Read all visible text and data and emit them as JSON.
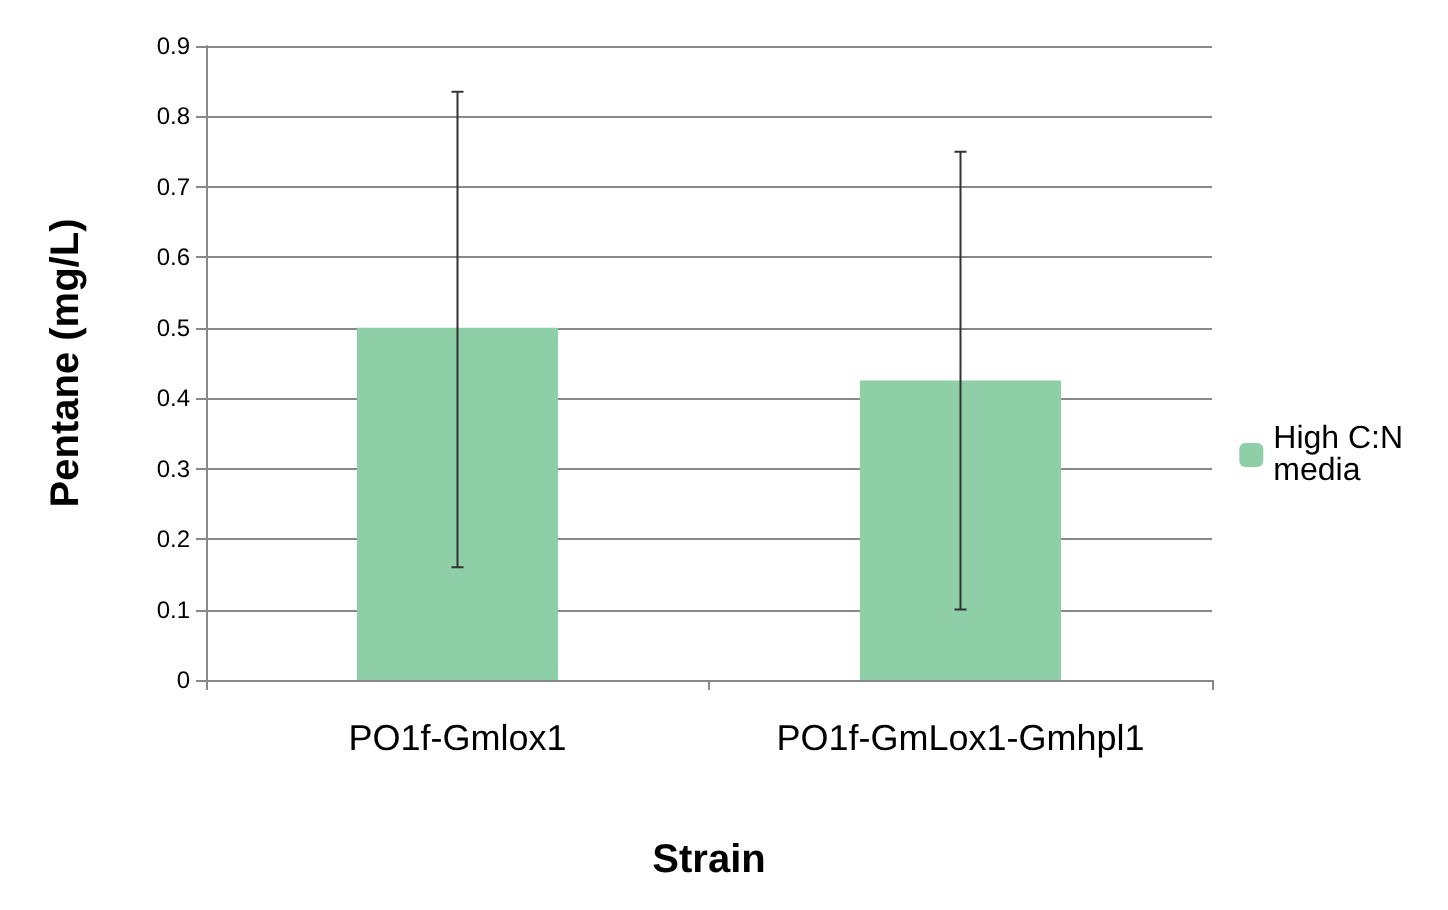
{
  "chart_data": {
    "type": "bar",
    "xlabel": "Strain",
    "ylabel": "Pentane (mg/L)",
    "categories": [
      "PO1f-Gmlox1",
      "PO1f-GmLox1-Gmhpl1"
    ],
    "series": [
      {
        "name": "High C:N media",
        "color": "#8ecfa8",
        "values": [
          0.5,
          0.425
        ],
        "errors": [
          [
            0.16,
            0.835
          ],
          [
            0.1,
            0.75
          ]
        ]
      }
    ],
    "ylim": [
      0,
      0.9
    ],
    "yticks": [
      0,
      0.1,
      0.2,
      0.3,
      0.4,
      0.5,
      0.6,
      0.7,
      0.8,
      0.9
    ],
    "grid": "y",
    "legend": "right"
  }
}
